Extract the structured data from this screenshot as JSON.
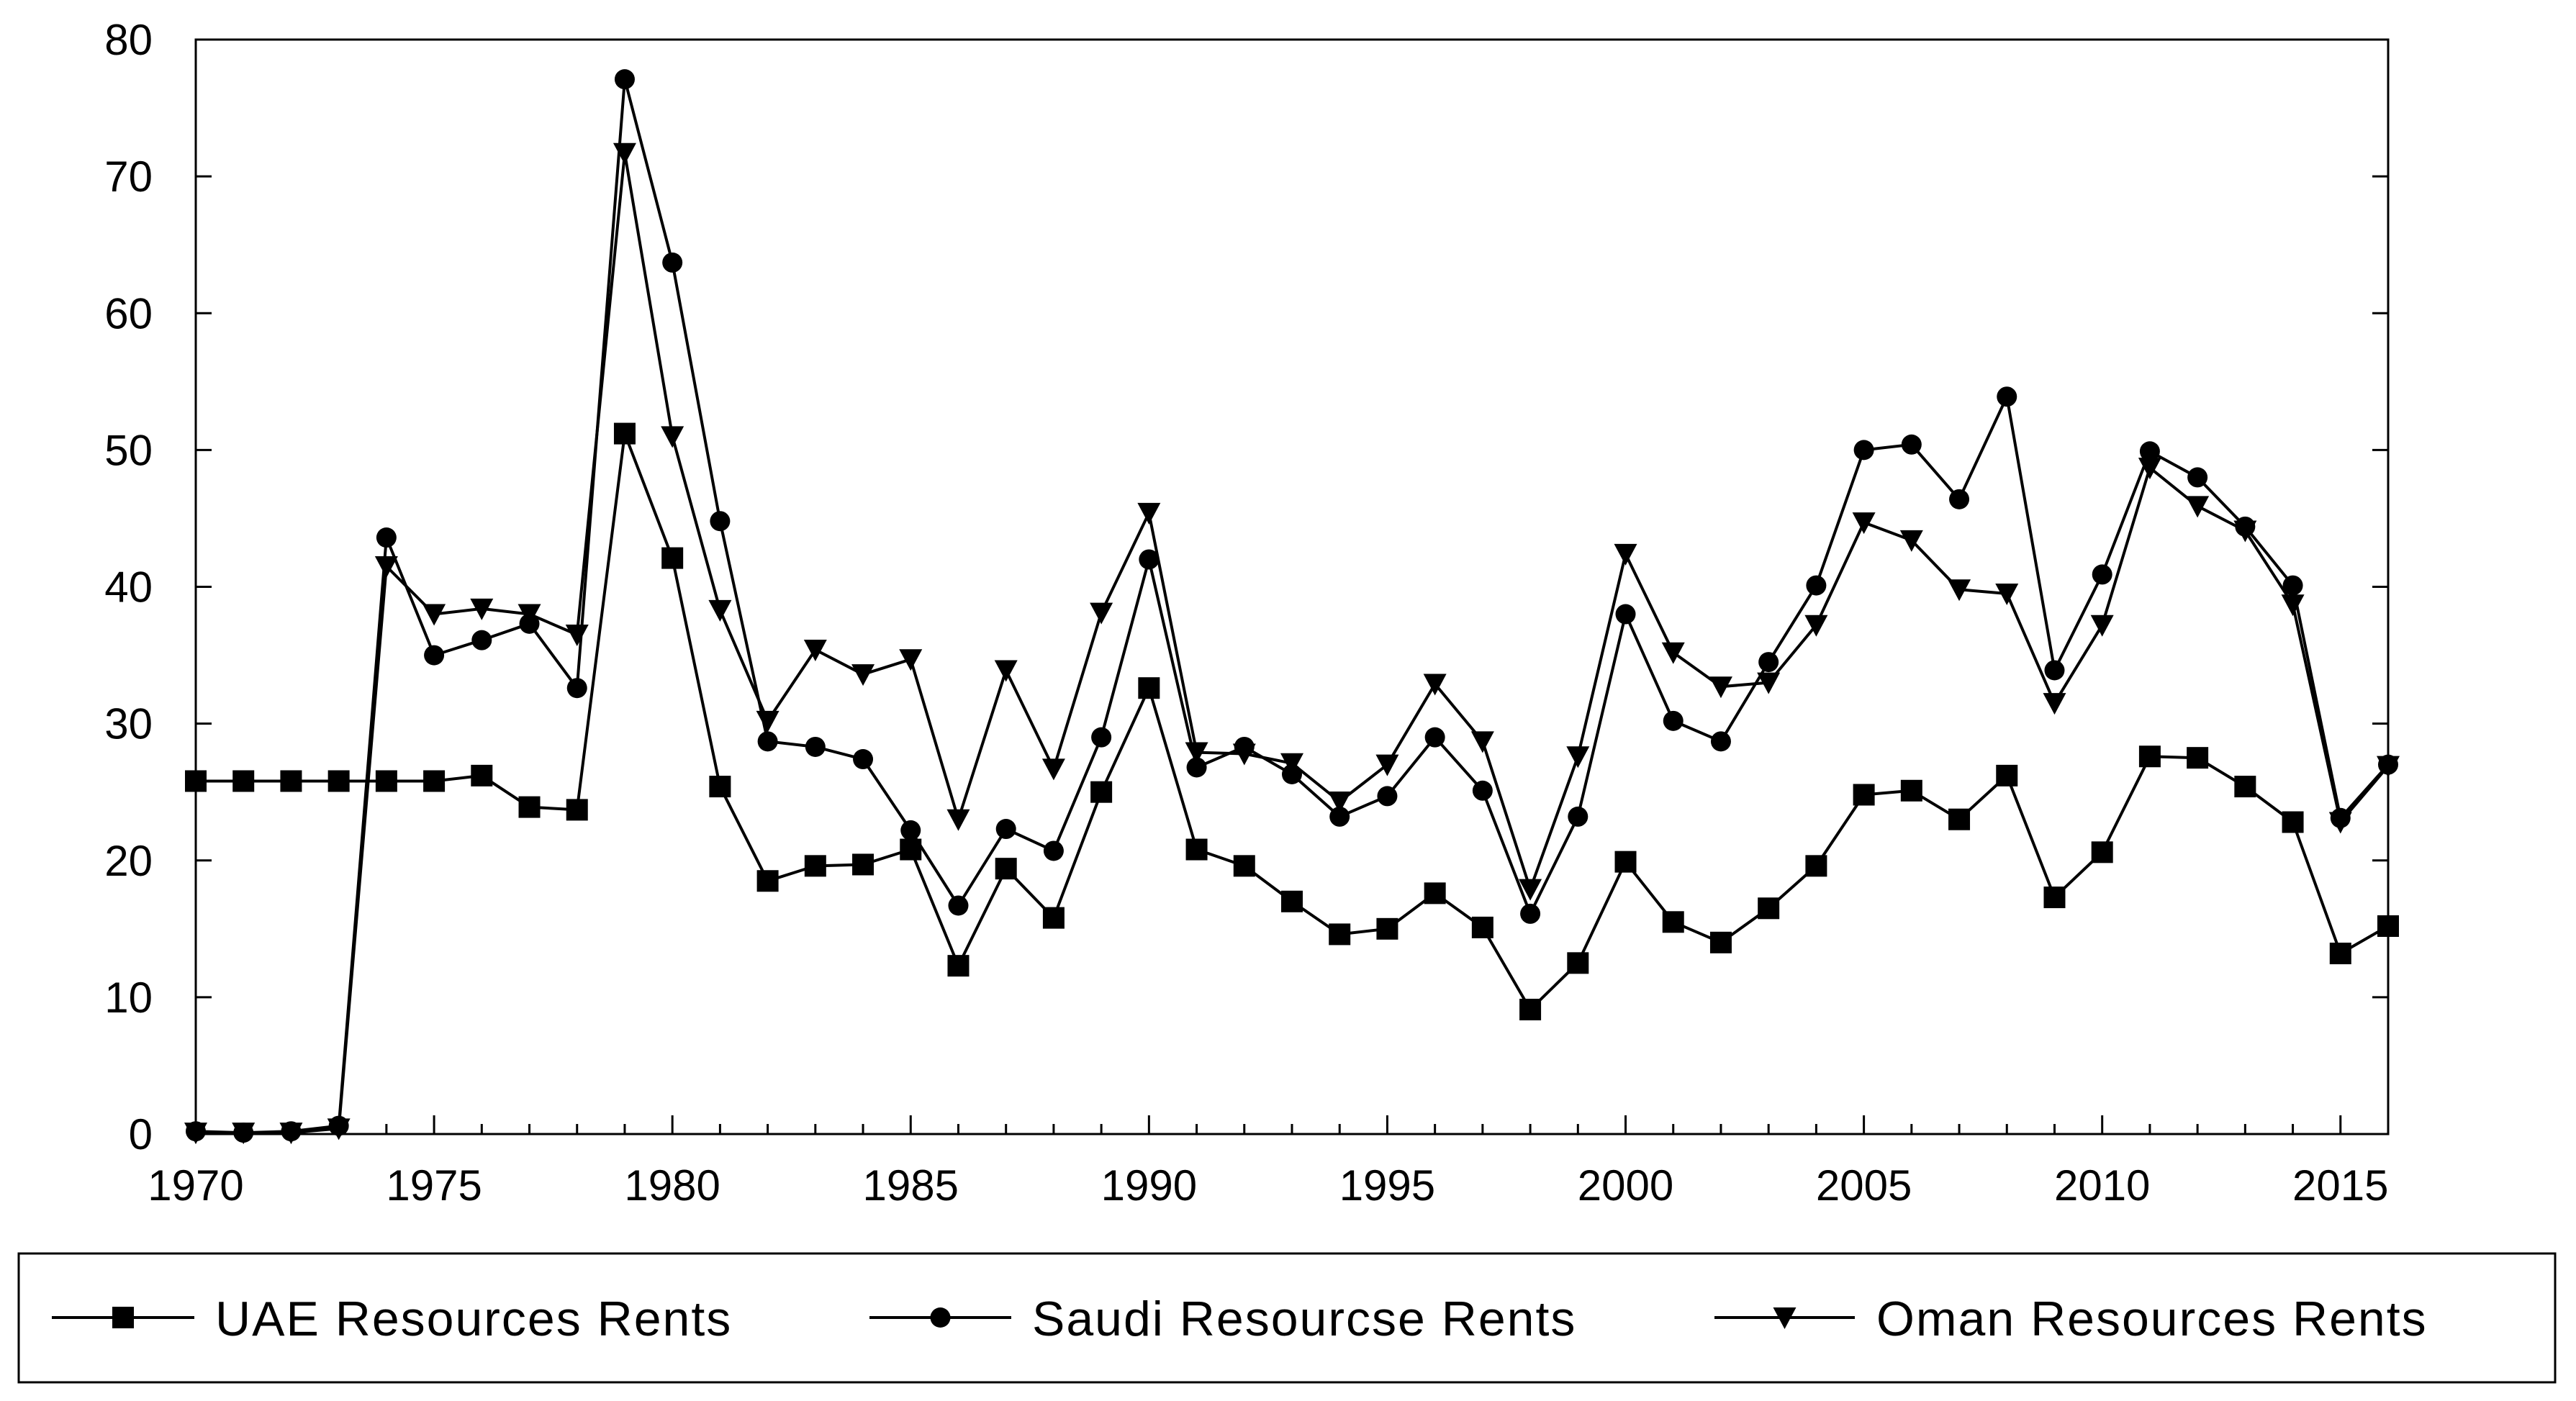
{
  "chart_data": {
    "type": "line",
    "title": "",
    "xlabel": "",
    "ylabel": "",
    "xlim": [
      1970,
      2016
    ],
    "ylim": [
      0,
      80
    ],
    "x_ticks": [
      1970,
      1975,
      1980,
      1985,
      1990,
      1995,
      2000,
      2005,
      2010,
      2015
    ],
    "y_ticks": [
      0,
      10,
      20,
      30,
      40,
      50,
      60,
      70,
      80
    ],
    "grid": false,
    "legend_position": "bottom",
    "x": [
      1970,
      1971,
      1972,
      1973,
      1974,
      1975,
      1976,
      1977,
      1978,
      1979,
      1980,
      1981,
      1982,
      1983,
      1984,
      1985,
      1986,
      1987,
      1988,
      1989,
      1990,
      1991,
      1992,
      1993,
      1994,
      1995,
      1996,
      1997,
      1998,
      1999,
      2000,
      2001,
      2002,
      2003,
      2004,
      2005,
      2006,
      2007,
      2008,
      2009,
      2010,
      2011,
      2012,
      2013,
      2014,
      2015,
      2016
    ],
    "series": [
      {
        "name": "UAE Resources Rents",
        "marker": "square",
        "color": "#000000",
        "values": [
          25.8,
          25.8,
          25.8,
          25.8,
          25.8,
          25.8,
          26.2,
          23.9,
          23.7,
          51.2,
          42.1,
          25.4,
          18.5,
          19.6,
          19.7,
          20.8,
          12.3,
          19.4,
          15.8,
          25.0,
          32.6,
          20.8,
          19.6,
          17.0,
          14.6,
          15.0,
          17.6,
          15.1,
          9.1,
          12.5,
          19.9,
          15.5,
          14.0,
          16.5,
          19.6,
          24.8,
          25.1,
          23.0,
          26.2,
          17.3,
          20.6,
          27.6,
          27.5,
          25.4,
          22.8,
          13.2,
          15.2
        ]
      },
      {
        "name": "Saudi Resourcse Rents",
        "marker": "circle",
        "color": "#000000",
        "values": [
          0.2,
          0.1,
          0.2,
          0.6,
          43.6,
          35.0,
          36.1,
          37.3,
          32.6,
          77.1,
          63.7,
          44.8,
          28.7,
          28.3,
          27.4,
          22.2,
          16.7,
          22.3,
          20.7,
          29.0,
          42.0,
          26.8,
          28.3,
          26.3,
          23.2,
          24.7,
          29.0,
          25.1,
          16.1,
          23.2,
          38.0,
          30.2,
          28.7,
          34.5,
          40.1,
          50.0,
          50.4,
          46.4,
          53.9,
          33.9,
          40.9,
          49.9,
          48.0,
          44.4,
          40.1,
          23.1,
          27.0
        ]
      },
      {
        "name": "Oman Resources Rents",
        "marker": "triangle-down",
        "color": "#000000",
        "values": [
          0.1,
          0.1,
          0.1,
          0.4,
          41.5,
          38.0,
          38.4,
          38.0,
          36.5,
          71.7,
          51.0,
          38.3,
          30.2,
          35.4,
          33.6,
          34.7,
          23.0,
          33.9,
          26.7,
          38.1,
          45.4,
          27.9,
          27.8,
          27.1,
          24.3,
          27.0,
          32.9,
          28.7,
          17.9,
          27.6,
          42.4,
          35.2,
          32.7,
          33.0,
          37.2,
          44.7,
          43.4,
          39.8,
          39.5,
          31.5,
          37.2,
          48.7,
          45.9,
          44.1,
          38.7,
          22.8,
          26.9
        ]
      }
    ]
  }
}
